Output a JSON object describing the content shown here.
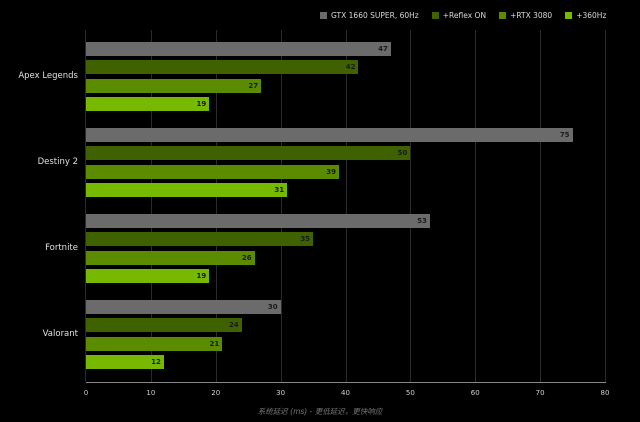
{
  "chart_data": {
    "type": "bar",
    "orientation": "horizontal",
    "title": "",
    "xlabel": "系统延迟 (ms) - 更低延迟，更快响应",
    "ylabel": "",
    "xlim": [
      0,
      80
    ],
    "xticks": [
      "0",
      "10",
      "20",
      "30",
      "40",
      "50",
      "60",
      "70",
      "80"
    ],
    "grid": true,
    "legend_position": "top-right",
    "categories": [
      "Apex Legends",
      "Destiny 2",
      "Fortnite",
      "Valorant"
    ],
    "series": [
      {
        "name": "GTX 1660 SUPER, 60Hz",
        "color": "#6b6b6b",
        "values": [
          47,
          75,
          53,
          30
        ]
      },
      {
        "name": "+Reflex ON",
        "color": "#3f6100",
        "values": [
          42,
          50,
          35,
          24
        ]
      },
      {
        "name": "+RTX 3080",
        "color": "#5b8c00",
        "values": [
          27,
          39,
          26,
          21
        ]
      },
      {
        "name": "+360Hz",
        "color": "#76b900",
        "values": [
          19,
          31,
          19,
          12
        ]
      }
    ]
  }
}
